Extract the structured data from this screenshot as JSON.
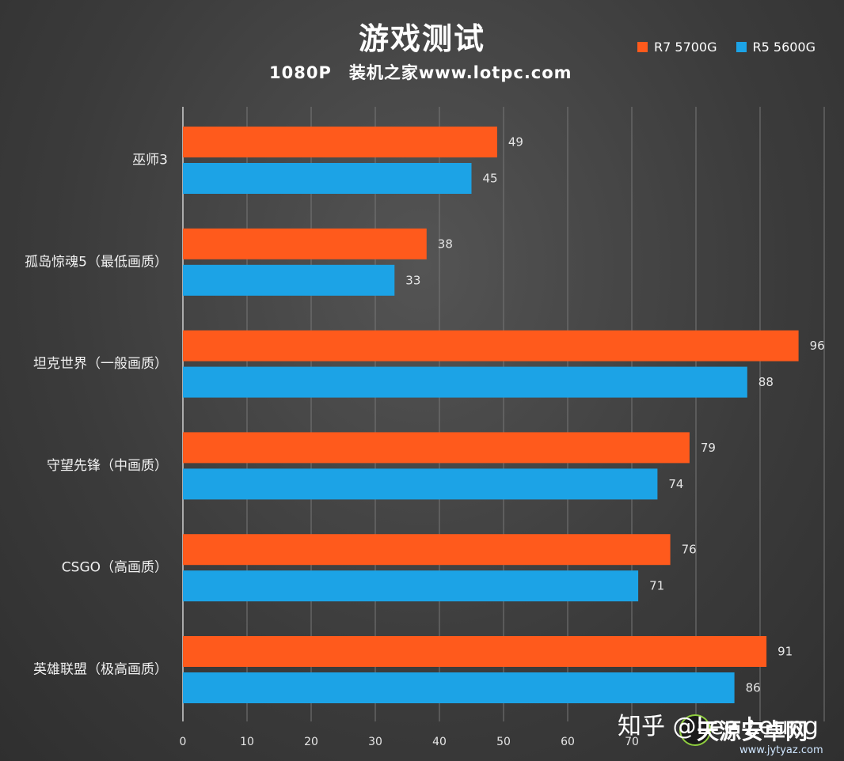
{
  "title": "游戏测试",
  "subtitle": "1080P　装机之家www.lotpc.com",
  "watermark": "知乎 @Lee Leung",
  "watermark2": {
    "name": "天源安卓网",
    "url": "www.jytyaz.com"
  },
  "colors": {
    "r7": "#ff5a1c",
    "r5": "#1ca3e6",
    "grid": "#777777"
  },
  "chart_data": {
    "type": "bar",
    "orientation": "horizontal",
    "categories": [
      "巫师3",
      "孤岛惊魂5（最低画质）",
      "坦克世界（一般画质）",
      "守望先锋（中画质）",
      "CSGO（高画质）",
      "英雄联盟（极高画质）"
    ],
    "series": [
      {
        "name": "R7 5700G",
        "color": "#ff5a1c",
        "values": [
          49,
          38,
          96,
          79,
          76,
          91
        ]
      },
      {
        "name": "R5 5600G",
        "color": "#1ca3e6",
        "values": [
          45,
          33,
          88,
          74,
          71,
          86
        ]
      }
    ],
    "title": "游戏测试",
    "subtitle": "1080P　装机之家www.lotpc.com",
    "xlim": [
      0,
      100
    ],
    "xticks": [
      0,
      10,
      20,
      30,
      40,
      50,
      60,
      70
    ],
    "grid": true,
    "legend": "top-right"
  }
}
